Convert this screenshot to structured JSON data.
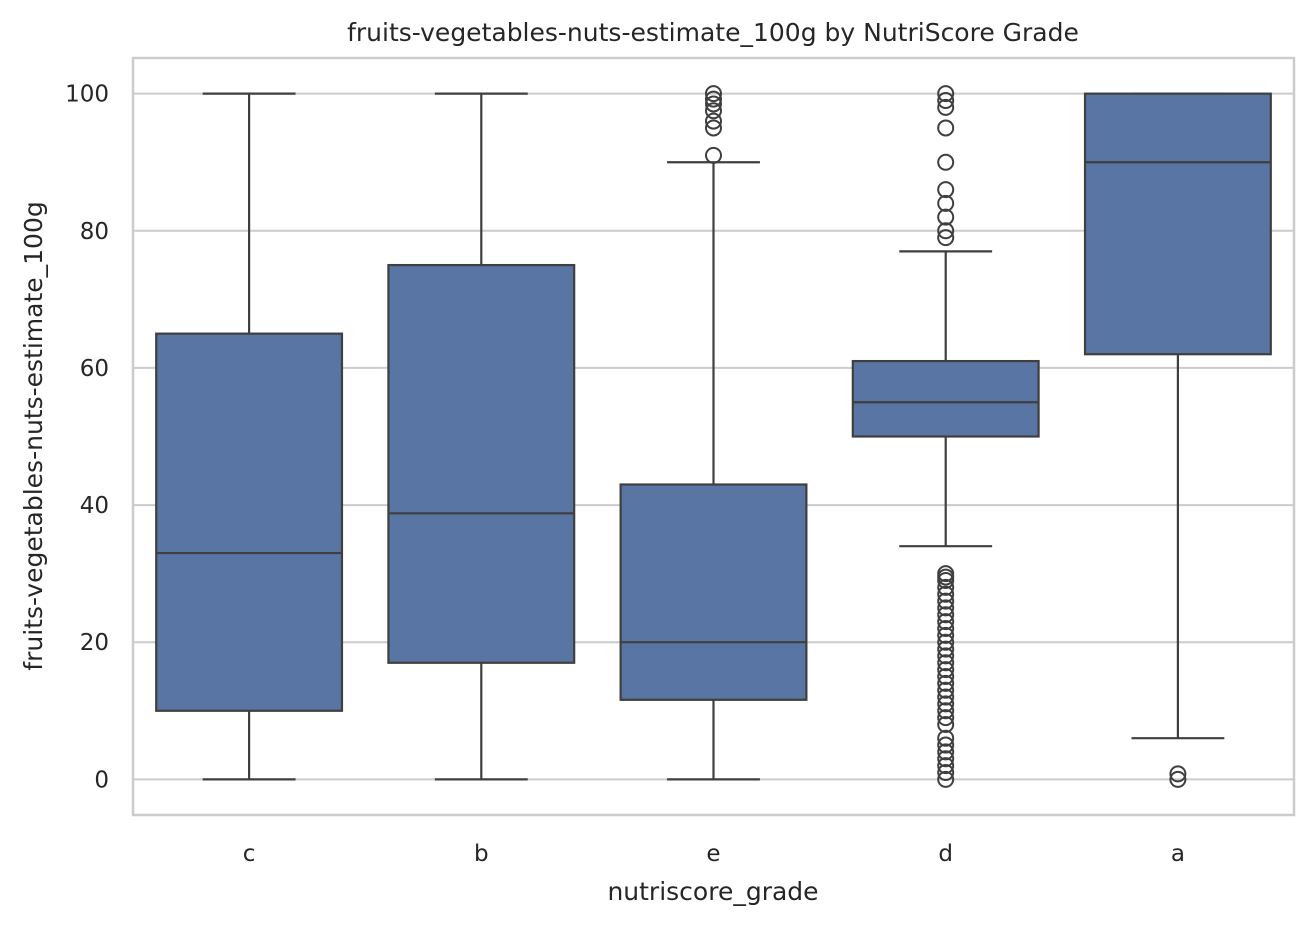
{
  "chart_data": {
    "type": "box",
    "title": "fruits-vegetables-nuts-estimate_100g by NutriScore Grade",
    "xlabel": "nutriscore_grade",
    "ylabel": "fruits-vegetables-nuts-estimate_100g",
    "ylim": [
      -5.2,
      105.2
    ],
    "yticks": [
      0,
      20,
      40,
      60,
      80,
      100
    ],
    "grid": true,
    "legend": "none",
    "colors": {
      "box_fill": "#5875a4",
      "line": "#3f3f3f",
      "grid": "#cccccc",
      "frame": "#cccccc"
    },
    "categories": [
      "c",
      "b",
      "e",
      "d",
      "a"
    ],
    "boxes": [
      {
        "category": "c",
        "whisker_low": 0,
        "q1": 10,
        "median": 33,
        "q3": 65,
        "whisker_high": 100,
        "outliers": []
      },
      {
        "category": "b",
        "whisker_low": 0,
        "q1": 17,
        "median": 38.8,
        "q3": 75,
        "whisker_high": 100,
        "outliers": []
      },
      {
        "category": "e",
        "whisker_low": 0,
        "q1": 11.6,
        "median": 20,
        "q3": 43,
        "whisker_high": 90,
        "outliers": [
          91,
          95,
          96,
          97.5,
          98.5,
          99.2,
          100
        ]
      },
      {
        "category": "d",
        "whisker_low": 34,
        "q1": 50,
        "median": 55,
        "q3": 61,
        "whisker_high": 77,
        "outliers": [
          0,
          1,
          2,
          3,
          4,
          5,
          6,
          8,
          9,
          10,
          11,
          12,
          13,
          14,
          15,
          16,
          17,
          18,
          19,
          20,
          21,
          22,
          23,
          24,
          25,
          26,
          27,
          28,
          29,
          29.5,
          30,
          79,
          80,
          82,
          84,
          86,
          90,
          95,
          98,
          99,
          100
        ]
      },
      {
        "category": "a",
        "whisker_low": 6,
        "q1": 62,
        "median": 90,
        "q3": 100,
        "whisker_high": 100,
        "outliers": [
          0,
          0.8
        ]
      }
    ]
  }
}
